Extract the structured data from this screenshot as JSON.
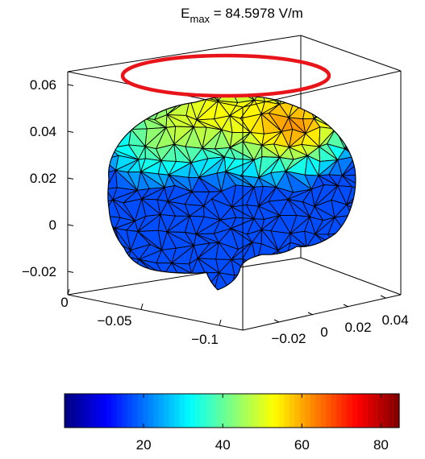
{
  "chart_data": {
    "type": "3d-surface-mesh",
    "title": {
      "prefix": "E",
      "subscript": "max",
      "suffix": " = 84.5978 V/m"
    },
    "e_max": 84.5978,
    "units": "V/m",
    "z_axis": {
      "ticks": [
        0.06,
        0.04,
        0.02,
        0,
        -0.02
      ],
      "tick_labels": [
        "0.06",
        "0.04",
        "0.02",
        "0",
        "−0.02"
      ],
      "range": [
        -0.03,
        0.07
      ]
    },
    "x_axis": {
      "ticks": [
        0,
        -0.05,
        -0.1
      ],
      "tick_labels": [
        "0",
        "−0.05",
        "−0.1"
      ]
    },
    "y_axis": {
      "ticks": [
        -0.02,
        0,
        0.02,
        0.04
      ],
      "tick_labels": [
        "−0.02",
        "0",
        "0.02",
        "0.04"
      ]
    },
    "coil": {
      "shape": "ring",
      "color": "#e8141a"
    },
    "colorbar": {
      "colormap": "jet",
      "range": [
        0,
        84.5978
      ],
      "ticks": [
        20,
        40,
        60,
        80
      ],
      "tick_labels": [
        "20",
        "40",
        "60",
        "80"
      ]
    },
    "grid": false
  }
}
